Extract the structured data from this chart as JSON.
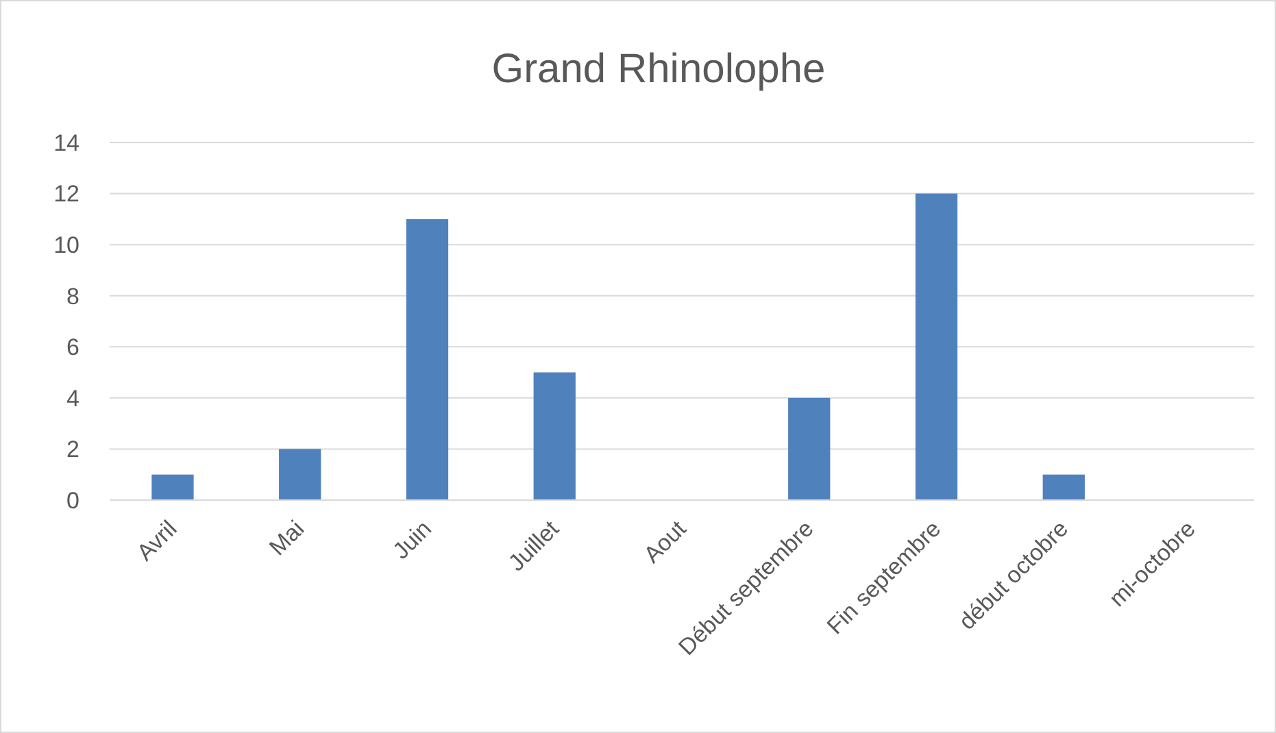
{
  "chart_data": {
    "type": "bar",
    "title": "Grand Rhinolophe",
    "categories": [
      "Avril",
      "Mai",
      "Juin",
      "Juillet",
      "Aout",
      "Début septembre",
      "Fin septembre",
      "début octobre",
      "mi-octobre"
    ],
    "values": [
      1,
      2,
      11,
      5,
      0,
      4,
      12,
      1,
      0
    ],
    "color": "#4f81bd",
    "ylim": [
      0,
      14
    ],
    "yticks": [
      0,
      2,
      4,
      6,
      8,
      10,
      12,
      14
    ],
    "grid": "y"
  }
}
